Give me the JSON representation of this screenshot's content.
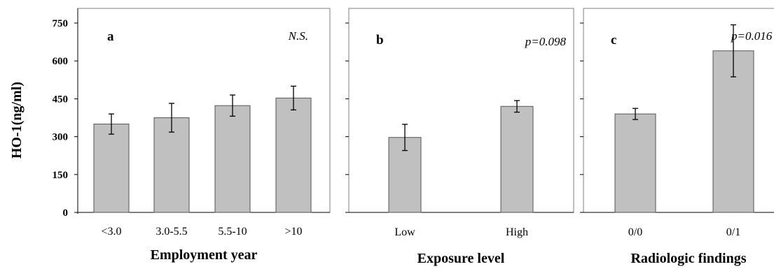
{
  "figure": {
    "ylabel": "HO-1(ng/ml)"
  },
  "chart_data": [
    {
      "type": "bar",
      "panel_label": "a",
      "annotation": "N.S.",
      "xlabel": "Employment year",
      "ylabel": "HO-1(ng/ml)",
      "categories": [
        "<3.0",
        "3.0-5.5",
        "5.5-10",
        ">10"
      ],
      "values": [
        350,
        375,
        423,
        453
      ],
      "errors": [
        40,
        57,
        42,
        47
      ],
      "ylim": [
        0,
        750
      ],
      "yticks": [
        "750",
        "600",
        "450",
        "300",
        "150",
        "0"
      ],
      "bar_color": "#c0c0c0"
    },
    {
      "type": "bar",
      "panel_label": "b",
      "annotation": "p=0.098",
      "xlabel": "Exposure level",
      "categories": [
        "Low",
        "High"
      ],
      "values": [
        297,
        420
      ],
      "errors": [
        52,
        23
      ],
      "ylim": [
        0,
        750
      ],
      "bar_color": "#c0c0c0"
    },
    {
      "type": "bar",
      "panel_label": "c",
      "annotation": "p=0.016",
      "xlabel": "Radiologic findings",
      "categories": [
        "0/0",
        "0/1"
      ],
      "values": [
        390,
        640
      ],
      "errors": [
        22,
        103
      ],
      "ylim": [
        0,
        750
      ],
      "bar_color": "#c0c0c0"
    }
  ]
}
